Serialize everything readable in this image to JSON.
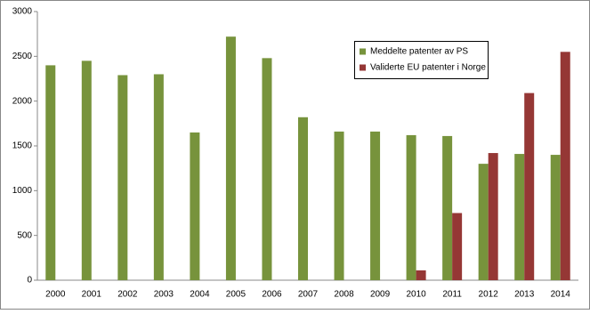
{
  "chart_data": {
    "type": "bar",
    "categories": [
      "2000",
      "2001",
      "2002",
      "2003",
      "2004",
      "2005",
      "2006",
      "2007",
      "2008",
      "2009",
      "2010",
      "2011",
      "2012",
      "2013",
      "2014"
    ],
    "series": [
      {
        "name": "Meddelte patenter av PS",
        "color": "#77933c",
        "values": [
          2400,
          2450,
          2290,
          2300,
          1650,
          2720,
          2480,
          1820,
          1660,
          1660,
          1620,
          1610,
          1300,
          1410,
          1400
        ]
      },
      {
        "name": "Validerte EU patenter i Norge",
        "color": "#953735",
        "values": [
          null,
          null,
          null,
          null,
          null,
          null,
          null,
          null,
          null,
          null,
          110,
          750,
          1420,
          2090,
          2550
        ]
      }
    ],
    "ylim": [
      0,
      3000
    ],
    "yticks": [
      0,
      500,
      1000,
      1500,
      2000,
      2500,
      3000
    ],
    "grid": false,
    "legend": "upper-right"
  }
}
